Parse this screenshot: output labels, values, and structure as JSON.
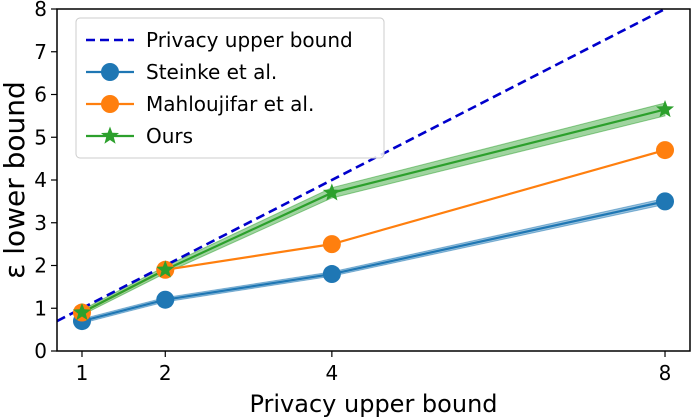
{
  "chart_data": {
    "type": "line",
    "xlabel": "Privacy upper bound",
    "ylabel": "ε lower bound",
    "xlim": [
      0.7,
      8.3
    ],
    "ylim": [
      0,
      8
    ],
    "xticks": [
      1,
      2,
      4,
      8
    ],
    "yticks": [
      0,
      1,
      2,
      3,
      4,
      5,
      6,
      7,
      8
    ],
    "grid": false,
    "legend_position": "top-left",
    "series": [
      {
        "name": "Privacy upper bound",
        "style": "dashed",
        "marker": "none",
        "color": "#0000cc",
        "x": [
          0.7,
          8.3
        ],
        "y": [
          0.7,
          8.3
        ]
      },
      {
        "name": "Steinke et al.",
        "style": "solid",
        "marker": "circle",
        "color": "#1f77b4",
        "x": [
          1,
          2,
          4,
          8
        ],
        "y": [
          0.7,
          1.2,
          1.8,
          3.5
        ],
        "band": [
          0.05,
          0.05,
          0.05,
          0.07
        ]
      },
      {
        "name": "Mahloujifar et al.",
        "style": "solid",
        "marker": "circle",
        "color": "#ff7f0e",
        "x": [
          1,
          2,
          4,
          8
        ],
        "y": [
          0.9,
          1.9,
          2.5,
          4.7
        ],
        "band": [
          0,
          0,
          0,
          0
        ]
      },
      {
        "name": "Ours",
        "style": "solid",
        "marker": "star",
        "color": "#2ca02c",
        "x": [
          1,
          2,
          4,
          8
        ],
        "y": [
          0.9,
          1.9,
          3.7,
          5.65
        ],
        "band": [
          0.06,
          0.08,
          0.12,
          0.15
        ]
      }
    ]
  }
}
